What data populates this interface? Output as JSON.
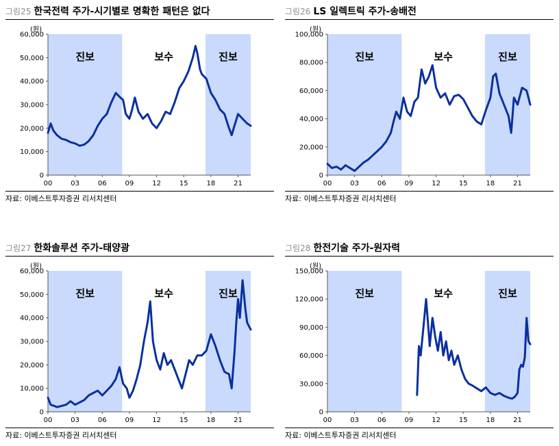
{
  "charts": [
    {
      "figure": "그림25",
      "title": "한국전력 주가-시기별로 명확한 패턴은 없다",
      "unit": "(원)",
      "source": "자료: 이베스트투자증권 리서치센터",
      "chart_data": {
        "type": "line",
        "ylim": [
          0,
          60000
        ],
        "yticks": [
          "0",
          "10,000",
          "20,000",
          "30,000",
          "40,000",
          "50,000",
          "60,000"
        ],
        "xlim": [
          2000,
          2022.4
        ],
        "xticks": [
          "00",
          "03",
          "06",
          "09",
          "12",
          "15",
          "18",
          "21"
        ],
        "periods": [
          {
            "label": "진보",
            "start": 2000,
            "end": 2008.2,
            "shaded": true
          },
          {
            "label": "보수",
            "start": 2008.2,
            "end": 2017.4,
            "shaded": false
          },
          {
            "label": "진보",
            "start": 2017.4,
            "end": 2022.4,
            "shaded": true
          }
        ],
        "series": [
          {
            "color": "#0a2f9e",
            "x": [
              2000,
              2000.3,
              2000.6,
              2001,
              2001.5,
              2002,
              2002.5,
              2003,
              2003.5,
              2004,
              2004.5,
              2005,
              2005.5,
              2006,
              2006.5,
              2007,
              2007.5,
              2008,
              2008.3,
              2008.6,
              2009,
              2009.3,
              2009.6,
              2010,
              2010.5,
              2011,
              2011.5,
              2012,
              2012.5,
              2013,
              2013.5,
              2014,
              2014.5,
              2015,
              2015.5,
              2016,
              2016.3,
              2016.5,
              2016.8,
              2017,
              2017.5,
              2018,
              2018.5,
              2019,
              2019.5,
              2020,
              2020.3,
              2020.6,
              2021,
              2021.5,
              2022,
              2022.4
            ],
            "y": [
              18000,
              22000,
              19000,
              17000,
              15500,
              15000,
              14000,
              13500,
              12500,
              13000,
              14500,
              17000,
              21000,
              24000,
              26000,
              31000,
              35000,
              33000,
              32000,
              26000,
              24000,
              28000,
              33000,
              27000,
              24000,
              26000,
              22000,
              20000,
              23000,
              27000,
              26000,
              31000,
              37000,
              40000,
              44000,
              50000,
              55000,
              52000,
              45000,
              43000,
              41000,
              35000,
              32000,
              28000,
              26000,
              20000,
              17000,
              21000,
              26000,
              24000,
              22000,
              21000
            ]
          }
        ]
      }
    },
    {
      "figure": "그림26",
      "title": "LS 일렉트릭 주가-송배전",
      "unit": "(원)",
      "source": "자료: 이베스트투자증권 리서치센터",
      "chart_data": {
        "type": "line",
        "ylim": [
          0,
          100000
        ],
        "yticks": [
          "0",
          "20,000",
          "40,000",
          "60,000",
          "80,000",
          "100,000"
        ],
        "xlim": [
          2000,
          2022.4
        ],
        "xticks": [
          "00",
          "03",
          "06",
          "09",
          "12",
          "15",
          "18",
          "21"
        ],
        "periods": [
          {
            "label": "진보",
            "start": 2000,
            "end": 2008.2,
            "shaded": true
          },
          {
            "label": "보수",
            "start": 2008.2,
            "end": 2017.4,
            "shaded": false
          },
          {
            "label": "진보",
            "start": 2017.4,
            "end": 2022.4,
            "shaded": true
          }
        ],
        "series": [
          {
            "color": "#0a2f9e",
            "x": [
              2000,
              2000.5,
              2001,
              2001.5,
              2002,
              2002.5,
              2003,
              2003.5,
              2004,
              2004.5,
              2005,
              2005.5,
              2006,
              2006.5,
              2007,
              2007.3,
              2007.6,
              2008,
              2008.4,
              2008.8,
              2009.2,
              2009.6,
              2010,
              2010.4,
              2010.8,
              2011.2,
              2011.6,
              2012,
              2012.5,
              2013,
              2013.5,
              2014,
              2014.5,
              2015,
              2015.5,
              2016,
              2016.5,
              2017,
              2017.5,
              2018,
              2018.3,
              2018.6,
              2019,
              2019.5,
              2020,
              2020.3,
              2020.6,
              2021,
              2021.5,
              2022,
              2022.4
            ],
            "y": [
              8000,
              5000,
              6000,
              4000,
              7000,
              5000,
              3000,
              6000,
              9000,
              11000,
              14000,
              17000,
              20000,
              24000,
              30000,
              38000,
              45000,
              40000,
              55000,
              45000,
              42000,
              52000,
              55000,
              75000,
              65000,
              70000,
              78000,
              62000,
              55000,
              58000,
              50000,
              56000,
              57000,
              54000,
              48000,
              42000,
              38000,
              36000,
              46000,
              55000,
              70000,
              72000,
              58000,
              50000,
              42000,
              30000,
              55000,
              50000,
              62000,
              60000,
              50000
            ]
          }
        ]
      }
    },
    {
      "figure": "그림27",
      "title": "한화솔루션 주가-태양광",
      "unit": "(원)",
      "source": "자료: 이베스트투자증권 리서치센터",
      "chart_data": {
        "type": "line",
        "ylim": [
          0,
          60000
        ],
        "yticks": [
          "0",
          "10,000",
          "20,000",
          "30,000",
          "40,000",
          "50,000",
          "60,000"
        ],
        "xlim": [
          2000,
          2022.4
        ],
        "xticks": [
          "00",
          "03",
          "06",
          "09",
          "12",
          "15",
          "18",
          "21"
        ],
        "periods": [
          {
            "label": "진보",
            "start": 2000,
            "end": 2008.2,
            "shaded": true
          },
          {
            "label": "보수",
            "start": 2008.2,
            "end": 2017.4,
            "shaded": false
          },
          {
            "label": "진보",
            "start": 2017.4,
            "end": 2022.4,
            "shaded": true
          }
        ],
        "series": [
          {
            "color": "#0a2f9e",
            "x": [
              2000,
              2000.3,
              2000.7,
              2001,
              2001.5,
              2002,
              2002.5,
              2003,
              2003.5,
              2004,
              2004.5,
              2005,
              2005.5,
              2006,
              2006.5,
              2007,
              2007.5,
              2007.9,
              2008.3,
              2008.7,
              2009,
              2009.4,
              2009.8,
              2010.2,
              2010.6,
              2011,
              2011.3,
              2011.6,
              2012,
              2012.4,
              2012.8,
              2013.2,
              2013.6,
              2014,
              2014.4,
              2014.8,
              2015.2,
              2015.6,
              2016,
              2016.5,
              2017,
              2017.5,
              2018,
              2018.5,
              2019,
              2019.5,
              2020,
              2020.3,
              2020.6,
              2020.8,
              2021,
              2021.2,
              2021.5,
              2021.8,
              2022,
              2022.4
            ],
            "y": [
              6000,
              3000,
              2500,
              2000,
              2500,
              3000,
              4500,
              3000,
              4000,
              5000,
              7000,
              8000,
              9000,
              7000,
              9000,
              11000,
              14000,
              19000,
              12000,
              10000,
              6000,
              9000,
              14000,
              20000,
              30000,
              38000,
              47000,
              30000,
              22000,
              18000,
              25000,
              20000,
              22000,
              18000,
              14000,
              10000,
              16000,
              22000,
              20000,
              24000,
              24000,
              26000,
              33000,
              28000,
              22000,
              17000,
              16000,
              10000,
              25000,
              38000,
              48000,
              40000,
              56000,
              44000,
              38000,
              35000
            ]
          }
        ]
      }
    },
    {
      "figure": "그림28",
      "title": "한전기술 주가-원자력",
      "unit": "(원)",
      "source": "자료: 이베스트투자증권 리서치센터",
      "chart_data": {
        "type": "line",
        "ylim": [
          0,
          150000
        ],
        "yticks": [
          "0",
          "30,000",
          "60,000",
          "90,000",
          "120,000",
          "150,000"
        ],
        "xlim": [
          2000,
          2022.4
        ],
        "xticks": [
          "00",
          "03",
          "06",
          "09",
          "12",
          "15",
          "18",
          "21"
        ],
        "periods": [
          {
            "label": "진보",
            "start": 2000,
            "end": 2008.2,
            "shaded": true
          },
          {
            "label": "보수",
            "start": 2008.2,
            "end": 2017.4,
            "shaded": false
          },
          {
            "label": "진보",
            "start": 2017.4,
            "end": 2022.4,
            "shaded": true
          }
        ],
        "series": [
          {
            "color": "#0a2f9e",
            "x": [
              2009.9,
              2010.1,
              2010.3,
              2010.6,
              2010.9,
              2011.1,
              2011.3,
              2011.6,
              2011.9,
              2012.2,
              2012.5,
              2012.8,
              2013.1,
              2013.4,
              2013.7,
              2014,
              2014.4,
              2014.8,
              2015.2,
              2015.6,
              2016,
              2016.5,
              2017,
              2017.5,
              2018,
              2018.5,
              2019,
              2019.5,
              2020,
              2020.4,
              2020.7,
              2021,
              2021.2,
              2021.4,
              2021.6,
              2021.8,
              2022,
              2022.2,
              2022.4
            ],
            "y": [
              18000,
              70000,
              60000,
              90000,
              120000,
              95000,
              70000,
              100000,
              80000,
              65000,
              85000,
              60000,
              75000,
              55000,
              65000,
              50000,
              60000,
              45000,
              35000,
              30000,
              28000,
              25000,
              22000,
              26000,
              20000,
              18000,
              20000,
              17000,
              15000,
              14000,
              16000,
              20000,
              45000,
              50000,
              48000,
              58000,
              100000,
              75000,
              72000
            ]
          }
        ]
      }
    }
  ]
}
